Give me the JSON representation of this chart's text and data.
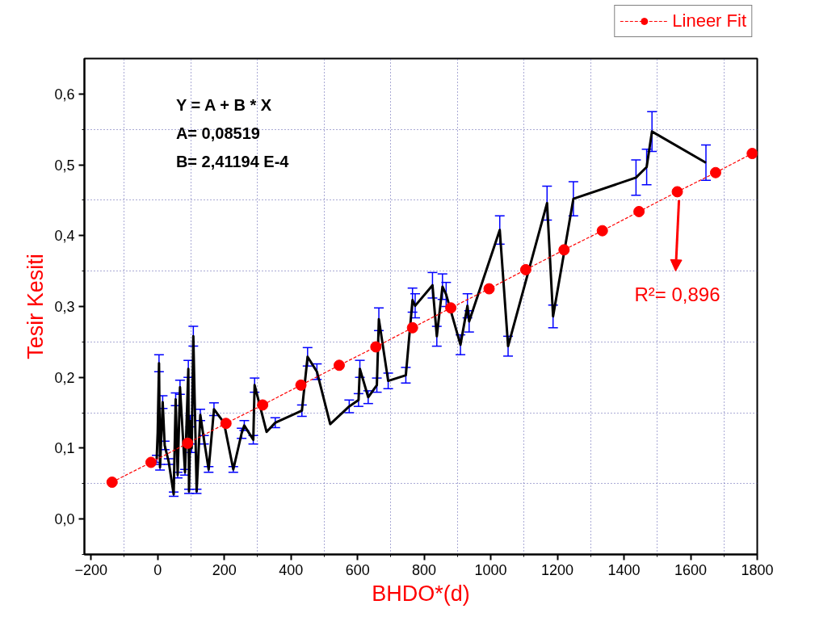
{
  "chart_data": {
    "type": "line",
    "xlabel": "BHDO*(d)",
    "ylabel": "Tesir Kesiti",
    "xlim": [
      -220,
      1800
    ],
    "ylim": [
      -0.05,
      0.65
    ],
    "xticks": [
      -200,
      {
        "value": -100,
        "label": null
      },
      0,
      {
        "value": 100,
        "label": null
      },
      200,
      {
        "value": 300,
        "label": null
      },
      400,
      {
        "value": 500,
        "label": null
      },
      600,
      {
        "value": 700,
        "label": null
      },
      800,
      {
        "value": 900,
        "label": null
      },
      1000,
      {
        "value": 1100,
        "label": null
      },
      1200,
      {
        "value": 1300,
        "label": null
      },
      1400,
      {
        "value": 1500,
        "label": null
      },
      1600,
      {
        "value": 1700,
        "label": null
      },
      1800
    ],
    "yticks": [
      {
        "value": -0.05,
        "label": null
      },
      {
        "value": 0.0,
        "label": "0,0"
      },
      {
        "value": 0.05,
        "label": null
      },
      {
        "value": 0.1,
        "label": "0,1"
      },
      {
        "value": 0.15,
        "label": null
      },
      {
        "value": 0.2,
        "label": "0,2"
      },
      {
        "value": 0.25,
        "label": null
      },
      {
        "value": 0.3,
        "label": "0,3"
      },
      {
        "value": 0.35,
        "label": null
      },
      {
        "value": 0.4,
        "label": "0,4"
      },
      {
        "value": 0.45,
        "label": null
      },
      {
        "value": 0.5,
        "label": "0,5"
      },
      {
        "value": 0.55,
        "label": null
      },
      {
        "value": 0.6,
        "label": "0,6"
      }
    ],
    "grid": true,
    "legend": "top right",
    "series": [
      {
        "color": "#000000",
        "marker": "none",
        "line_style": "solid",
        "x": [
          -3,
          0,
          4,
          7,
          15,
          21,
          33,
          48,
          54,
          60,
          67,
          82,
          92,
          94,
          98,
          102,
          107,
          117,
          128,
          139,
          153,
          169,
          199,
          227,
          252,
          260,
          287,
          291,
          327,
          353,
          433,
          450,
          478,
          518,
          575,
          603,
          607,
          632,
          658,
          664,
          692,
          745,
          765,
          773,
          825,
          838,
          855,
          866,
          909,
          930,
          935,
          1027,
          1052,
          1169,
          1187,
          1248,
          1436,
          1468,
          1484,
          1646
        ],
        "values": [
          0.085,
          0.122,
          0.22,
          0.073,
          0.165,
          0.104,
          0.081,
          0.035,
          0.169,
          0.062,
          0.186,
          0.066,
          0.212,
          0.039,
          0.138,
          0.1,
          0.258,
          0.039,
          0.147,
          0.112,
          0.07,
          0.155,
          0.136,
          0.07,
          0.121,
          0.132,
          0.112,
          0.189,
          0.123,
          0.136,
          0.153,
          0.229,
          0.208,
          0.134,
          0.159,
          0.168,
          0.212,
          0.172,
          0.189,
          0.282,
          0.195,
          0.203,
          0.309,
          0.301,
          0.33,
          0.258,
          0.328,
          0.317,
          0.246,
          0.301,
          0.279,
          0.408,
          0.244,
          0.446,
          0.286,
          0.452,
          0.482,
          0.497,
          0.547,
          0.503
        ],
        "errors": [
          0.005,
          null,
          0.012,
          0.004,
          0.009,
          0.006,
          0.004,
          0.003,
          0.009,
          0.004,
          0.01,
          0.004,
          0.012,
          0.003,
          0.008,
          0.006,
          0.014,
          0.003,
          0.008,
          0.006,
          0.004,
          0.009,
          null,
          0.004,
          0.007,
          0.007,
          0.006,
          0.01,
          null,
          0.007,
          0.008,
          0.013,
          0.011,
          null,
          0.009,
          0.009,
          0.012,
          0.009,
          0.01,
          0.016,
          0.011,
          0.011,
          0.017,
          0.017,
          0.018,
          0.014,
          0.018,
          0.017,
          0.014,
          0.017,
          0.015,
          0.02,
          0.014,
          0.024,
          0.016,
          0.024,
          0.025,
          0.025,
          0.028,
          0.025
        ]
      },
      {
        "name": "Lineer Fit",
        "color": "#ff0000",
        "marker": "circle",
        "line_style": "dashed",
        "x": [
          -137,
          -20,
          90,
          205,
          315,
          430,
          545,
          655,
          765,
          880,
          995,
          1105,
          1220,
          1335,
          1445,
          1560,
          1675,
          1785
        ],
        "values": [
          0.052,
          0.08,
          0.107,
          0.135,
          0.161,
          0.189,
          0.217,
          0.243,
          0.27,
          0.298,
          0.325,
          0.352,
          0.38,
          0.407,
          0.434,
          0.462,
          0.489,
          0.516
        ]
      }
    ],
    "annotations": [
      "Y = A + B * X",
      "A= 0,08519",
      "B= 2,41194 E-4",
      "R²= 0,896"
    ]
  }
}
